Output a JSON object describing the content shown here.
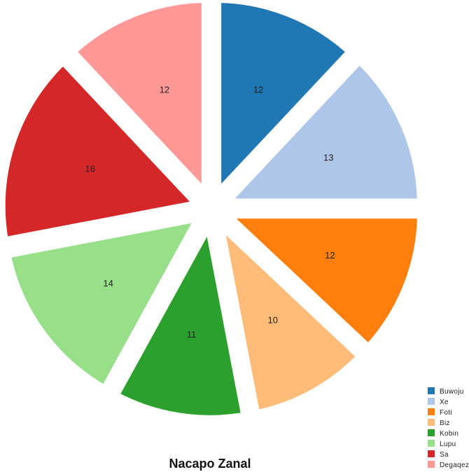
{
  "chart_data": {
    "type": "pie",
    "title": "Nacapo Zanal",
    "legend_position": "bottom-right",
    "exploded": true,
    "slices": [
      {
        "label": "Buwoju",
        "value": 12,
        "color": "#1f77b4"
      },
      {
        "label": "Xe",
        "value": 13,
        "color": "#aec7e8"
      },
      {
        "label": "Foti",
        "value": 12,
        "color": "#ff7f0e"
      },
      {
        "label": "Biz",
        "value": 10,
        "color": "#ffbb78"
      },
      {
        "label": "Kobin",
        "value": 11,
        "color": "#2ca02c"
      },
      {
        "label": "Lupu",
        "value": 14,
        "color": "#98df8a"
      },
      {
        "label": "Sa",
        "value": 16,
        "color": "#d62728"
      },
      {
        "label": "Degaqez",
        "value": 12,
        "color": "#ff9896"
      }
    ]
  }
}
